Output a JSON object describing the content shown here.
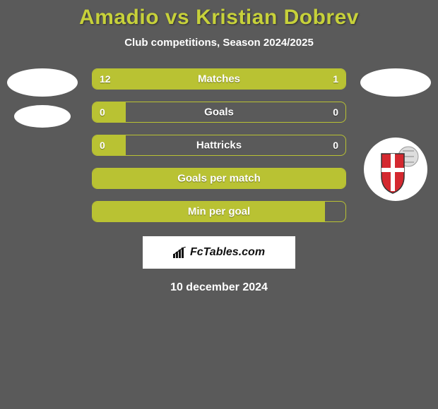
{
  "title": "Amadio vs Kristian Dobrev",
  "subtitle": "Club competitions, Season 2024/2025",
  "date_line": "10 december 2024",
  "brand": "FcTables.com",
  "background_color": "#5a5a5a",
  "bar_color": "#b9c233",
  "title_color": "#c7d13a",
  "text_color": "#ffffff",
  "brand_bg": "#ffffff",
  "brand_text_color": "#111111",
  "stats": [
    {
      "label": "Matches",
      "left_val": "12",
      "right_val": "1",
      "left_pct": 80,
      "right_pct": 20,
      "show_vals": true
    },
    {
      "label": "Goals",
      "left_val": "0",
      "right_val": "0",
      "left_pct": 13,
      "right_pct": 0,
      "show_vals": true
    },
    {
      "label": "Hattricks",
      "left_val": "0",
      "right_val": "0",
      "left_pct": 13,
      "right_pct": 0,
      "show_vals": true
    },
    {
      "label": "Goals per match",
      "left_val": "",
      "right_val": "",
      "left_pct": 100,
      "right_pct": 0,
      "show_vals": false
    },
    {
      "label": "Min per goal",
      "left_val": "",
      "right_val": "",
      "left_pct": 92,
      "right_pct": 0,
      "show_vals": false
    }
  ],
  "club_badge": {
    "bg": "#ffffff",
    "shield_main": "#d4282f",
    "shield_cross": "#ffffff",
    "shield_border": "#333333",
    "ball": "#dddddd"
  }
}
